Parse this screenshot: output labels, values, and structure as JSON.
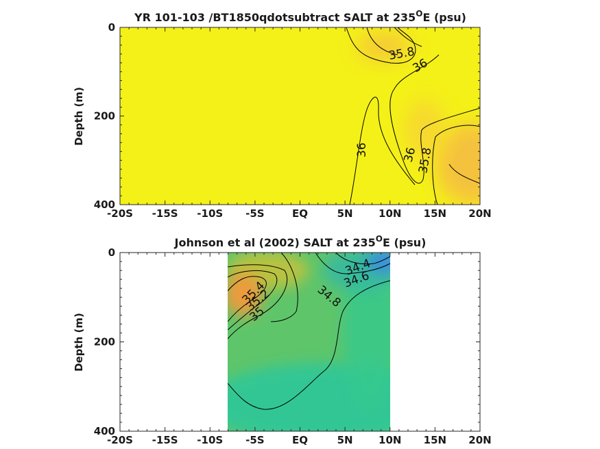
{
  "chart_data": [
    {
      "type": "contour",
      "title_main": "YR 101-103 /BT1850qdotsubtract SALT at 235",
      "title_sup": "O",
      "title_end": "E (psu)",
      "ylabel": "Depth (m)",
      "x_ticks": [
        "-20S",
        "-15S",
        "-10S",
        "-5S",
        "EQ",
        "5N",
        "10N",
        "15N",
        "20N"
      ],
      "x_values": [
        -20,
        -15,
        -10,
        -5,
        0,
        5,
        10,
        15,
        20
      ],
      "y_ticks": [
        "0",
        "200",
        "400"
      ],
      "y_values": [
        0,
        200,
        400
      ],
      "xlim": [
        -20,
        20
      ],
      "ylim": [
        400,
        0
      ],
      "contour_labels": [
        "35.8",
        "36",
        "36",
        "36",
        "35.8"
      ],
      "field_colors": {
        "background": "#f4f118",
        "low_salt": "#f5c53a",
        "mid": "#f7d33a"
      }
    },
    {
      "type": "contour",
      "title_main": "Johnson et al (2002) SALT at 235",
      "title_sup": "O",
      "title_end": "E (psu)",
      "ylabel": "Depth (m)",
      "x_ticks": [
        "-20S",
        "-15S",
        "-10S",
        "-5S",
        "EQ",
        "5N",
        "10N",
        "15N",
        "20N"
      ],
      "x_values": [
        -20,
        -15,
        -10,
        -5,
        0,
        5,
        10,
        15,
        20
      ],
      "y_ticks": [
        "0",
        "200",
        "400"
      ],
      "y_values": [
        0,
        200,
        400
      ],
      "xlim": [
        -20,
        20
      ],
      "ylim": [
        400,
        0
      ],
      "data_extent_x": [
        -8,
        10
      ],
      "contour_labels": [
        "35.4",
        "35.2",
        "35",
        "34.8",
        "34.4",
        "34.6"
      ],
      "field_colors": {
        "background": "#5fc56a",
        "deep": "#2ec79a",
        "fresh": "#3a8de0",
        "salty": "#f39a3a"
      }
    }
  ]
}
